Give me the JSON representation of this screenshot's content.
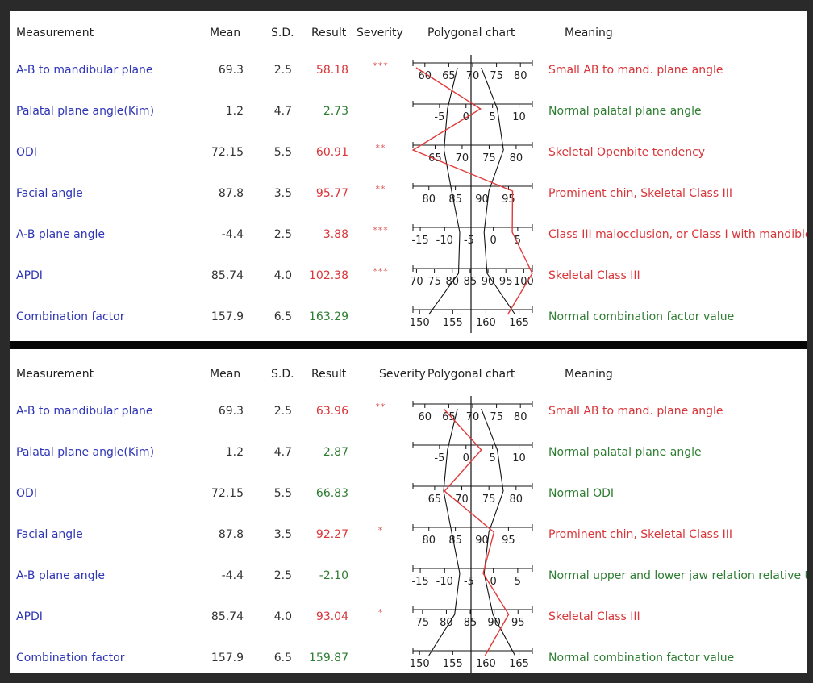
{
  "headers": {
    "measurement": "Measurement",
    "mean": "Mean",
    "sd": "S.D.",
    "result": "Result",
    "severity": "Severity",
    "chart": "Polygonal chart",
    "meaning": "Meaning"
  },
  "colors": {
    "name": "#2f36b5",
    "abnormal": "#d9363a",
    "normal": "#2e7d32",
    "result_line": "#e03a3a"
  },
  "panels": [
    {
      "rows": [
        {
          "name": "A-B to mandibular plane",
          "mean": "69.3",
          "sd": "2.5",
          "result": "58.18",
          "severity": "***",
          "meaning": "Small AB to mand. plane angle",
          "status": "abnormal",
          "ticks": [
            "60",
            "65",
            "70",
            "75",
            "80"
          ],
          "tick_values": [
            60,
            65,
            70,
            75,
            80
          ],
          "range": [
            57.5,
            82.5
          ],
          "value": 58.18
        },
        {
          "name": "Palatal plane angle(Kim)",
          "mean": "1.2",
          "sd": "4.7",
          "result": "2.73",
          "severity": "",
          "meaning": "Normal palatal plane angle",
          "status": "normal",
          "ticks": [
            "-5",
            "0",
            "5",
            "10"
          ],
          "tick_values": [
            -5,
            0,
            5,
            10
          ],
          "range": [
            -10,
            12.5
          ],
          "value": 2.73
        },
        {
          "name": "ODI",
          "mean": "72.15",
          "sd": "5.5",
          "result": "60.91",
          "severity": "**",
          "meaning": "Skeletal Openbite tendency",
          "status": "abnormal",
          "ticks": [
            "65",
            "70",
            "75",
            "80"
          ],
          "tick_values": [
            65,
            70,
            75,
            80
          ],
          "range": [
            60.9,
            83
          ],
          "value": 60.91
        },
        {
          "name": "Facial angle",
          "mean": "87.8",
          "sd": "3.5",
          "result": "95.77",
          "severity": "**",
          "meaning": "Prominent chin, Skeletal Class III",
          "status": "abnormal",
          "ticks": [
            "80",
            "85",
            "90",
            "95"
          ],
          "tick_values": [
            80,
            85,
            90,
            95
          ],
          "range": [
            77,
            99.5
          ],
          "value": 95.77
        },
        {
          "name": "A-B plane angle",
          "mean": "-4.4",
          "sd": "2.5",
          "result": "3.88",
          "severity": "***",
          "meaning": "Class III malocclusion, or Class I with mandible",
          "status": "abnormal",
          "ticks": [
            "-15",
            "-10",
            "-5",
            "0",
            "5"
          ],
          "tick_values": [
            -15,
            -10,
            -5,
            0,
            5
          ],
          "range": [
            -16.5,
            8
          ],
          "value": 3.88
        },
        {
          "name": "APDI",
          "mean": "85.74",
          "sd": "4.0",
          "result": "102.38",
          "severity": "***",
          "meaning": "Skeletal Class III",
          "status": "abnormal",
          "ticks": [
            "70",
            "75",
            "80",
            "85",
            "90",
            "95",
            "100"
          ],
          "tick_values": [
            70,
            75,
            80,
            85,
            90,
            95,
            100
          ],
          "range": [
            69,
            102.4
          ],
          "value": 102.38
        },
        {
          "name": "Combination factor",
          "mean": "157.9",
          "sd": "6.5",
          "result": "163.29",
          "severity": "",
          "meaning": "Normal combination factor value",
          "status": "normal",
          "ticks": [
            "150",
            "155",
            "160",
            "165"
          ],
          "tick_values": [
            150,
            155,
            160,
            165
          ],
          "range": [
            149,
            167
          ],
          "value": 163.29
        }
      ]
    },
    {
      "rows": [
        {
          "name": "A-B to mandibular plane",
          "mean": "69.3",
          "sd": "2.5",
          "result": "63.96",
          "severity": "**",
          "meaning": "Small AB to mand. plane angle",
          "status": "abnormal",
          "ticks": [
            "60",
            "65",
            "70",
            "75",
            "80"
          ],
          "tick_values": [
            60,
            65,
            70,
            75,
            80
          ],
          "range": [
            57.5,
            82.5
          ],
          "value": 63.96
        },
        {
          "name": "Palatal plane angle(Kim)",
          "mean": "1.2",
          "sd": "4.7",
          "result": "2.87",
          "severity": "",
          "meaning": "Normal palatal plane angle",
          "status": "normal",
          "ticks": [
            "-5",
            "0",
            "5",
            "10"
          ],
          "tick_values": [
            -5,
            0,
            5,
            10
          ],
          "range": [
            -10,
            12.5
          ],
          "value": 2.87
        },
        {
          "name": "ODI",
          "mean": "72.15",
          "sd": "5.5",
          "result": "66.83",
          "severity": "",
          "meaning": "Normal ODI",
          "status": "normal",
          "ticks": [
            "65",
            "70",
            "75",
            "80"
          ],
          "tick_values": [
            65,
            70,
            75,
            80
          ],
          "range": [
            61,
            83
          ],
          "value": 66.83
        },
        {
          "name": "Facial angle",
          "mean": "87.8",
          "sd": "3.5",
          "result": "92.27",
          "severity": "*",
          "meaning": "Prominent chin, Skeletal Class III",
          "status": "abnormal",
          "ticks": [
            "80",
            "85",
            "90",
            "95"
          ],
          "tick_values": [
            80,
            85,
            90,
            95
          ],
          "range": [
            77,
            99.5
          ],
          "value": 92.27
        },
        {
          "name": "A-B plane angle",
          "mean": "-4.4",
          "sd": "2.5",
          "result": "-2.10",
          "severity": "",
          "meaning": "Normal upper and lower jaw relation relative to",
          "status": "normal",
          "ticks": [
            "-15",
            "-10",
            "-5",
            "0",
            "5"
          ],
          "tick_values": [
            -15,
            -10,
            -5,
            0,
            5
          ],
          "range": [
            -16.5,
            8
          ],
          "value": -2.1
        },
        {
          "name": "APDI",
          "mean": "85.74",
          "sd": "4.0",
          "result": "93.04",
          "severity": "*",
          "meaning": "Skeletal Class III",
          "status": "abnormal",
          "ticks": [
            "75",
            "80",
            "85",
            "90",
            "95"
          ],
          "tick_values": [
            75,
            80,
            85,
            90,
            95
          ],
          "range": [
            73,
            98
          ],
          "value": 93.04
        },
        {
          "name": "Combination factor",
          "mean": "157.9",
          "sd": "6.5",
          "result": "159.87",
          "severity": "",
          "meaning": "Normal combination factor value",
          "status": "normal",
          "ticks": [
            "150",
            "155",
            "160",
            "165"
          ],
          "tick_values": [
            150,
            155,
            160,
            165
          ],
          "range": [
            149,
            167
          ],
          "value": 159.87
        }
      ]
    }
  ]
}
